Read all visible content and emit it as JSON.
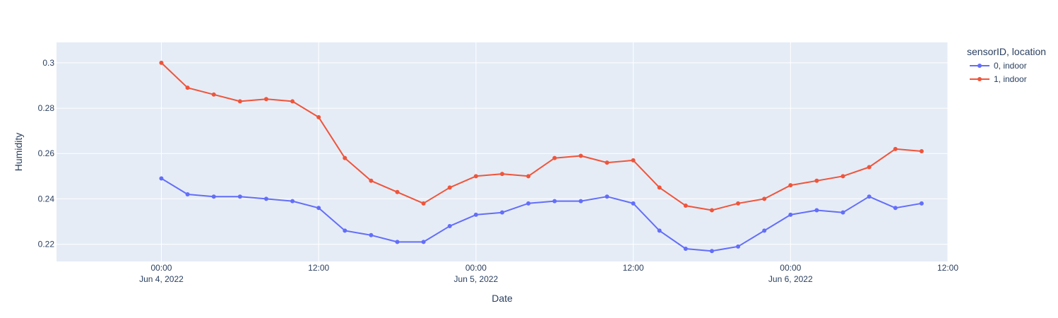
{
  "chart_data": {
    "type": "line",
    "xlabel": "Date",
    "ylabel": "Humidity",
    "xlim": [
      "2022-06-03T16:00:00",
      "2022-06-06T12:00:00"
    ],
    "ylim": [
      0.2124,
      0.309
    ],
    "x_ticks": [
      {
        "x": "2022-06-04T00:00:00",
        "time": "00:00",
        "date": "Jun 4, 2022"
      },
      {
        "x": "2022-06-04T12:00:00",
        "time": "12:00",
        "date": ""
      },
      {
        "x": "2022-06-05T00:00:00",
        "time": "00:00",
        "date": "Jun 5, 2022"
      },
      {
        "x": "2022-06-05T12:00:00",
        "time": "12:00",
        "date": ""
      },
      {
        "x": "2022-06-06T00:00:00",
        "time": "00:00",
        "date": "Jun 6, 2022"
      },
      {
        "x": "2022-06-06T12:00:00",
        "time": "12:00",
        "date": ""
      }
    ],
    "y_ticks": [
      {
        "value": 0.22,
        "label": "0.22"
      },
      {
        "value": 0.24,
        "label": "0.24"
      },
      {
        "value": 0.26,
        "label": "0.26"
      },
      {
        "value": 0.28,
        "label": "0.28"
      },
      {
        "value": 0.3,
        "label": "0.3"
      }
    ],
    "x": [
      "2022-06-04T00:00:00",
      "2022-06-04T02:00:00",
      "2022-06-04T04:00:00",
      "2022-06-04T06:00:00",
      "2022-06-04T08:00:00",
      "2022-06-04T10:00:00",
      "2022-06-04T12:00:00",
      "2022-06-04T14:00:00",
      "2022-06-04T16:00:00",
      "2022-06-04T18:00:00",
      "2022-06-04T20:00:00",
      "2022-06-04T22:00:00",
      "2022-06-05T00:00:00",
      "2022-06-05T02:00:00",
      "2022-06-05T04:00:00",
      "2022-06-05T06:00:00",
      "2022-06-05T08:00:00",
      "2022-06-05T10:00:00",
      "2022-06-05T12:00:00",
      "2022-06-05T14:00:00",
      "2022-06-05T16:00:00",
      "2022-06-05T18:00:00",
      "2022-06-05T20:00:00",
      "2022-06-05T22:00:00",
      "2022-06-06T00:00:00",
      "2022-06-06T02:00:00",
      "2022-06-06T04:00:00",
      "2022-06-06T06:00:00",
      "2022-06-06T08:00:00",
      "2022-06-06T10:00:00"
    ],
    "series": [
      {
        "name": "0, indoor",
        "color": "#636efa",
        "values": [
          0.249,
          0.242,
          0.241,
          0.241,
          0.24,
          0.239,
          0.236,
          0.226,
          0.224,
          0.221,
          0.221,
          0.228,
          0.233,
          0.234,
          0.238,
          0.239,
          0.239,
          0.241,
          0.238,
          0.226,
          0.218,
          0.217,
          0.219,
          0.226,
          0.233,
          0.235,
          0.234,
          0.241,
          0.236,
          0.238
        ]
      },
      {
        "name": "1, indoor",
        "color": "#ef553b",
        "values": [
          0.3,
          0.289,
          0.286,
          0.283,
          0.284,
          0.283,
          0.276,
          0.258,
          0.248,
          0.243,
          0.238,
          0.245,
          0.25,
          0.251,
          0.25,
          0.258,
          0.259,
          0.256,
          0.257,
          0.245,
          0.237,
          0.235,
          0.238,
          0.24,
          0.246,
          0.248,
          0.25,
          0.254,
          0.262,
          0.261
        ]
      }
    ],
    "legend": {
      "title": "sensorID, location",
      "placement": "right"
    },
    "grid": true,
    "background_color": "#e5ecf6",
    "grid_color": "#ffffff"
  }
}
